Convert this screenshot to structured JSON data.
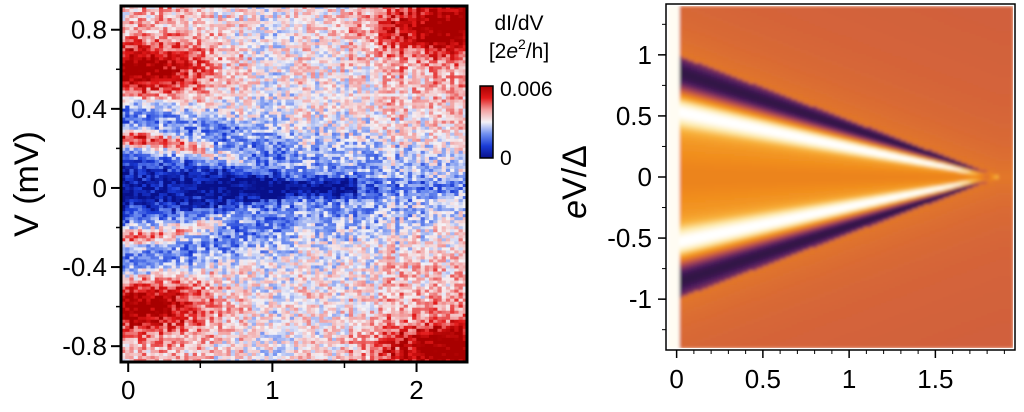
{
  "chart_data": [
    {
      "type": "heatmap",
      "title": "",
      "xlabel": "",
      "ylabel": "V (mV)",
      "xlim": [
        -0.05,
        2.35
      ],
      "ylim": [
        -0.88,
        0.92
      ],
      "xticks": [
        {
          "value": 0,
          "label": "0"
        },
        {
          "value": 1,
          "label": "1"
        },
        {
          "value": 2,
          "label": "2"
        }
      ],
      "yticks": [
        {
          "value": 0.8,
          "label": "0.8"
        },
        {
          "value": 0.4,
          "label": "0.4"
        },
        {
          "value": 0,
          "label": "0"
        },
        {
          "value": -0.4,
          "label": "-0.4"
        },
        {
          "value": -0.8,
          "label": "-0.8"
        }
      ],
      "colorbar": {
        "label_line1": "dI/dV",
        "label_prefix": "[2",
        "label_e": "e",
        "label_sup": "2",
        "label_suffix": "/h]",
        "max_label": "0.006",
        "min_label": "0",
        "range": [
          0,
          0.006
        ],
        "colors": [
          "#08108a",
          "#1a3bd6",
          "#6f8ff0",
          "#f4f2f6",
          "#f2a0a0",
          "#e21a1a",
          "#a80000"
        ]
      },
      "features": {
        "gap_edge_peak_V_at_x0": 0.24,
        "outer_peak_V_at_x0": 0.6,
        "peak_merge_x": 1.2,
        "peak_value": 0.006,
        "gap_value": 0
      }
    },
    {
      "type": "heatmap",
      "title": "",
      "xlabel": "",
      "ylabel": "eV/Δ",
      "ylabel_italic": "e",
      "ylabel_rest": "V/Δ",
      "xlim": [
        -0.05,
        1.95
      ],
      "ylim": [
        -1.4,
        1.4
      ],
      "xticks": [
        {
          "value": 0,
          "label": "0"
        },
        {
          "value": 0.5,
          "label": "0.5"
        },
        {
          "value": 1,
          "label": "1"
        },
        {
          "value": 1.5,
          "label": "1.5"
        }
      ],
      "yticks": [
        {
          "value": 1,
          "label": "1"
        },
        {
          "value": 0.5,
          "label": "0.5"
        },
        {
          "value": 0,
          "label": "0"
        },
        {
          "value": -0.5,
          "label": "-0.5"
        },
        {
          "value": -1,
          "label": "-1"
        }
      ],
      "colormap": [
        "#1a0b2e",
        "#4a1c5e",
        "#9a3c5c",
        "#d4633a",
        "#f08a1a",
        "#f8b23c",
        "#fde9a8",
        "#ffffff"
      ],
      "features": {
        "gap_edge_eV_at_x0": 1.0,
        "bright_band_eV_at_x0": 0.55,
        "closing_x": 1.88
      }
    }
  ]
}
